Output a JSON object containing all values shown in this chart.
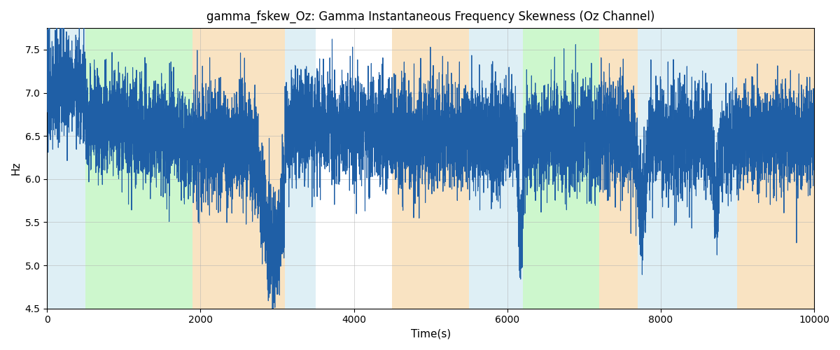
{
  "title": "gamma_fskew_Oz: Gamma Instantaneous Frequency Skewness (Oz Channel)",
  "xlabel": "Time(s)",
  "ylabel": "Hz",
  "xlim": [
    0,
    10000
  ],
  "ylim": [
    4.5,
    7.75
  ],
  "line_color": "#1f5fa6",
  "line_width": 0.8,
  "bg_bands": [
    {
      "xmin": 0,
      "xmax": 500,
      "color": "#add8e6",
      "alpha": 0.4
    },
    {
      "xmin": 500,
      "xmax": 1900,
      "color": "#90ee90",
      "alpha": 0.45
    },
    {
      "xmin": 1900,
      "xmax": 3100,
      "color": "#f5c887",
      "alpha": 0.5
    },
    {
      "xmin": 3100,
      "xmax": 3500,
      "color": "#add8e6",
      "alpha": 0.4
    },
    {
      "xmin": 4500,
      "xmax": 5500,
      "color": "#f5c887",
      "alpha": 0.5
    },
    {
      "xmin": 5500,
      "xmax": 6200,
      "color": "#add8e6",
      "alpha": 0.4
    },
    {
      "xmin": 6200,
      "xmax": 7200,
      "color": "#90ee90",
      "alpha": 0.45
    },
    {
      "xmin": 7200,
      "xmax": 7700,
      "color": "#f5c887",
      "alpha": 0.5
    },
    {
      "xmin": 7700,
      "xmax": 9000,
      "color": "#add8e6",
      "alpha": 0.4
    },
    {
      "xmin": 9000,
      "xmax": 10000,
      "color": "#f5c887",
      "alpha": 0.5
    }
  ],
  "seed": 42,
  "n_points": 10000,
  "yticks": [
    4.5,
    5.0,
    5.5,
    6.0,
    6.5,
    7.0,
    7.5
  ],
  "xticks": [
    0,
    2000,
    4000,
    6000,
    8000,
    10000
  ],
  "grid_color": "#b0b0b0",
  "grid_alpha": 0.7,
  "grid_lw": 0.5
}
